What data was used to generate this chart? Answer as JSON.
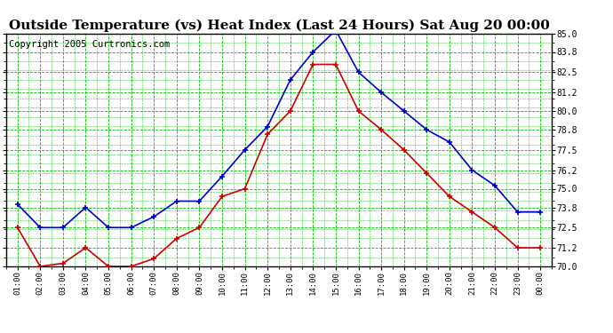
{
  "title": "Outside Temperature (vs) Heat Index (Last 24 Hours) Sat Aug 20 00:00",
  "copyright": "Copyright 2005 Curtronics.com",
  "x_labels": [
    "01:00",
    "02:00",
    "03:00",
    "04:00",
    "05:00",
    "06:00",
    "07:00",
    "08:00",
    "09:00",
    "10:00",
    "11:00",
    "12:00",
    "13:00",
    "14:00",
    "15:00",
    "16:00",
    "17:00",
    "18:00",
    "19:00",
    "20:00",
    "21:00",
    "22:00",
    "23:00",
    "00:00"
  ],
  "blue_data": [
    74.0,
    72.5,
    72.5,
    73.8,
    72.5,
    72.5,
    73.2,
    74.2,
    74.2,
    75.8,
    77.5,
    79.0,
    82.0,
    83.8,
    85.2,
    82.5,
    81.2,
    80.0,
    78.8,
    78.0,
    76.2,
    75.2,
    73.5,
    73.5
  ],
  "red_data": [
    72.5,
    70.0,
    70.2,
    71.2,
    70.0,
    70.0,
    70.5,
    71.8,
    72.5,
    74.5,
    75.0,
    78.5,
    80.0,
    83.0,
    83.0,
    80.0,
    78.8,
    77.5,
    76.0,
    74.5,
    73.5,
    72.5,
    71.2,
    71.2
  ],
  "ylim": [
    70.0,
    85.0
  ],
  "yticks": [
    70.0,
    71.2,
    72.5,
    73.8,
    75.0,
    76.2,
    77.5,
    78.8,
    80.0,
    81.2,
    82.5,
    83.8,
    85.0
  ],
  "blue_color": "#0000cc",
  "red_color": "#cc0000",
  "bg_color": "#ffffff",
  "plot_bg_color": "#ffffff",
  "grid_color": "#00bb00",
  "title_fontsize": 11,
  "copyright_fontsize": 7.5
}
